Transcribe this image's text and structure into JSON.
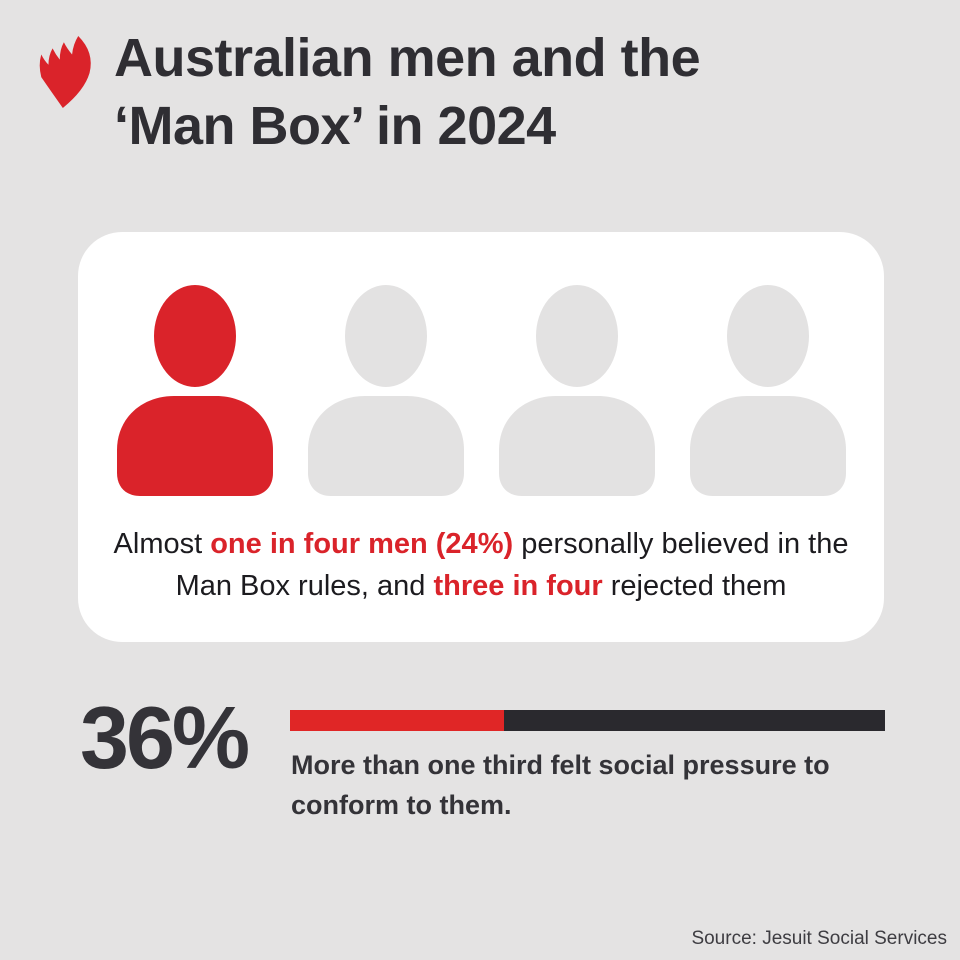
{
  "header": {
    "logo_name": "sbs-logo",
    "title_line1": "Australian men and the",
    "title_line2": "‘Man Box’ in 2024"
  },
  "card": {
    "line1": {
      "pre": "Almost ",
      "highlight": "one in four men (24%)",
      "post": " personally believed in the"
    },
    "line2": {
      "pre": "Man Box rules, and ",
      "highlight": "three in four",
      "post": " rejected them"
    }
  },
  "stat": {
    "value": "36%",
    "bar_fill_percent": 36,
    "caption_line1": "More than one third felt social pressure to",
    "caption_line2": "conform to them."
  },
  "footer": {
    "source": "Source: Jesuit Social Services"
  },
  "colors": {
    "background": "#E4E3E3",
    "card": "#FFFFFF",
    "accent_red": "#DA232A",
    "bar_red": "#E02626",
    "bar_dark": "#2A292E",
    "icon_gray": "#E3E2E2",
    "text_dark": "#2F2E33"
  },
  "chart_data": [
    {
      "type": "pictogram",
      "title": "Almost one in four men (24%) personally believed in the Man Box rules, and three in four rejected them",
      "icons_total": 4,
      "icons_highlighted": 1,
      "value_pct": 24,
      "rejected_pct_label": "three in four"
    },
    {
      "type": "bar",
      "title": "More than one third felt social pressure to conform to them.",
      "categories": [
        "Felt social pressure to conform to Man Box rules"
      ],
      "values": [
        36
      ],
      "value_label": "36%",
      "xlim": [
        0,
        100
      ],
      "orientation": "horizontal",
      "legend": "off",
      "grid": "off"
    }
  ]
}
